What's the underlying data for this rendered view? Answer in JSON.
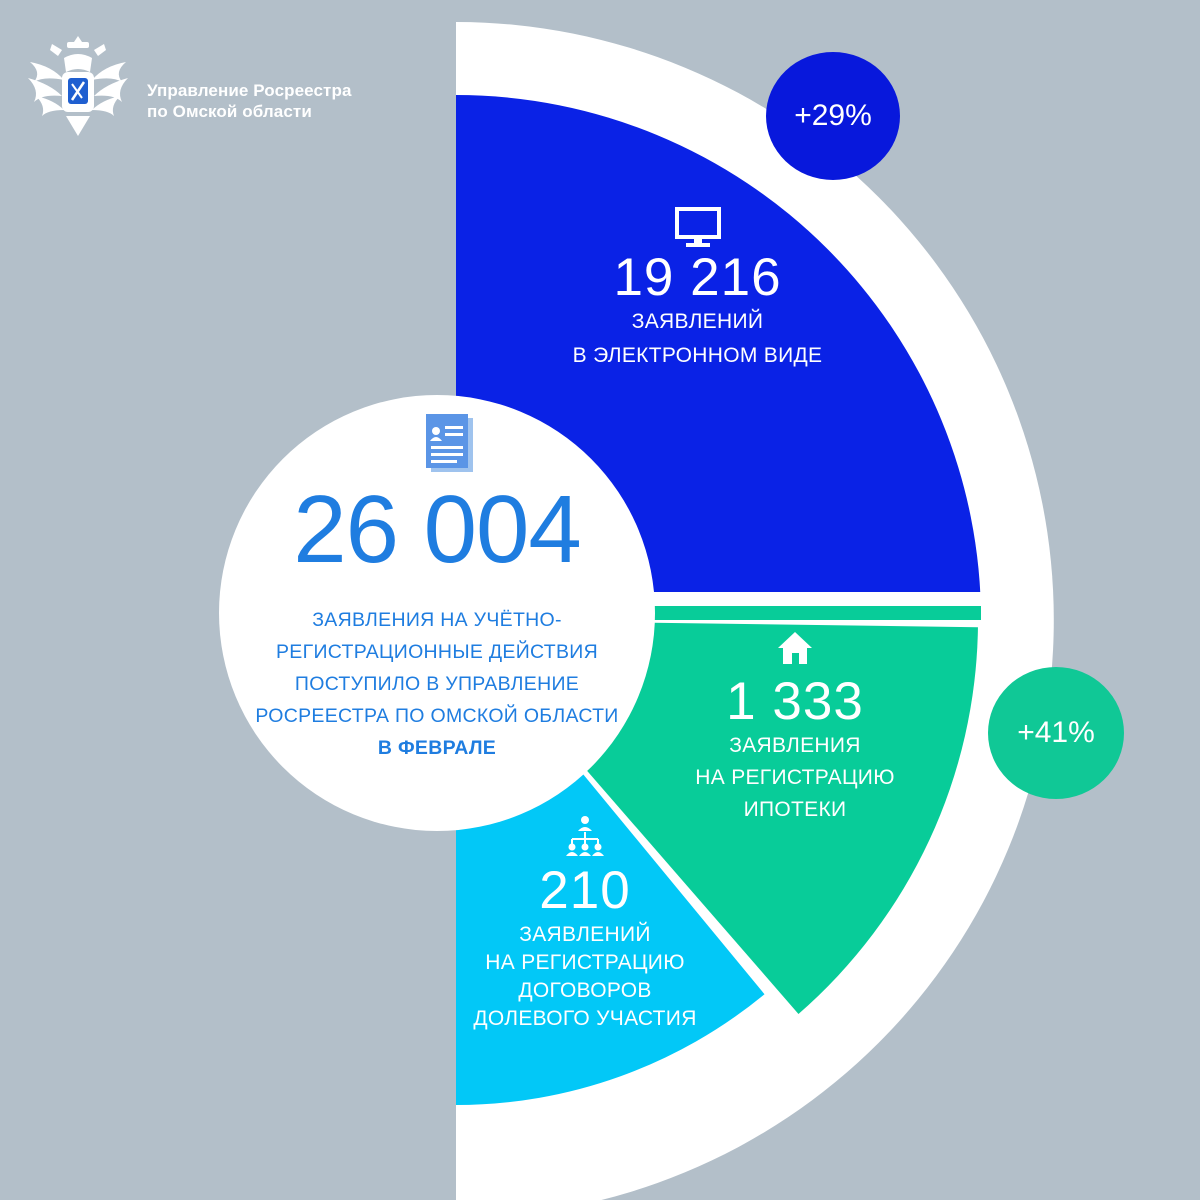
{
  "header": {
    "org_name_line1": "Управление Росреестра",
    "org_name_line2": "по Омской области"
  },
  "total": {
    "value": "26 004",
    "line1": "заявления на учётно-",
    "line2": "регистрационные действия",
    "line3": "поступило в управление",
    "line4": "Росреестра по Омской области",
    "month": "в феврале"
  },
  "colors": {
    "background": "#b3bfc9",
    "ring": "#ffffff",
    "electronic": "#0a22e6",
    "mortgage": "#08cc99",
    "shared": "#02c8f7",
    "badge_electronic": "#0818dc",
    "badge_mortgage": "#10c896",
    "total_text": "#1f7de0"
  },
  "chart_data": {
    "type": "pie",
    "total": 26004,
    "segments": [
      {
        "key": "electronic",
        "value": 19216,
        "value_label": "19 216",
        "line1": "заявлений",
        "line2": "в электронном виде",
        "icon": "monitor-icon",
        "change_label": "+29%"
      },
      {
        "key": "mortgage",
        "value": 1333,
        "value_label": "1 333",
        "line1": "заявления",
        "line2": "на регистрацию",
        "line3": "ипотеки",
        "icon": "house-icon",
        "change_label": "+41%"
      },
      {
        "key": "shared",
        "value": 210,
        "value_label": "210",
        "line1": "заявлений",
        "line2": "на регистрацию",
        "line3": "договоров",
        "line4": "долевого участия",
        "icon": "people-network-icon"
      }
    ]
  }
}
